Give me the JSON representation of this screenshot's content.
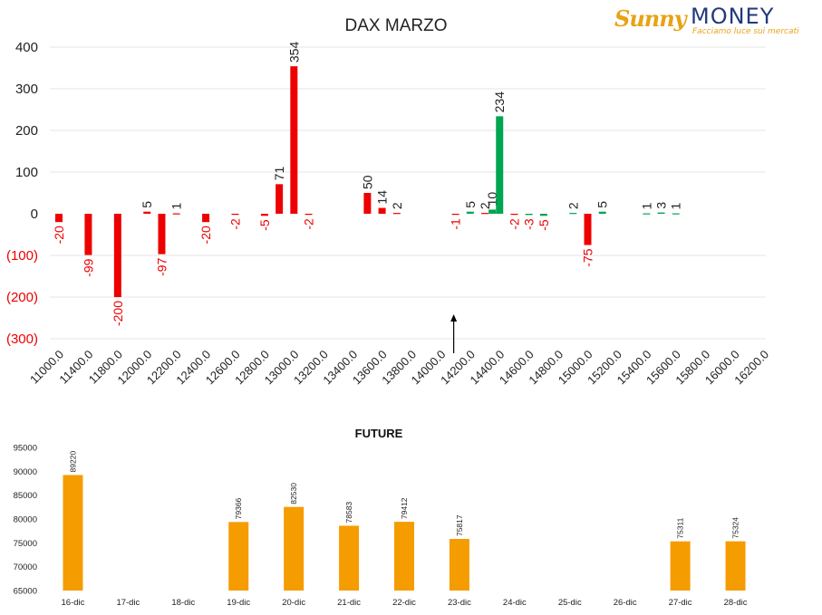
{
  "logo": {
    "brand_a": "Sunny",
    "brand_b": "MONEY",
    "tagline": "Facciamo luce sui mercati"
  },
  "colors": {
    "negative": "#ee0000",
    "positive": "#00a550",
    "future": "#f59c00",
    "axis": "#000000",
    "grid": "#e6e6e6"
  },
  "chart_data": [
    {
      "type": "bar",
      "title": "DAX MARZO",
      "ylim": [
        -300,
        400
      ],
      "yticks": [
        400,
        300,
        200,
        100,
        0,
        -100,
        -200,
        -300
      ],
      "ytick_labels": [
        "400",
        "300",
        "200",
        "100",
        "0",
        "(100)",
        "(200)",
        "(300)"
      ],
      "grid": true,
      "x_tick_labels": [
        "11000.0",
        "11400.0",
        "11800.0",
        "12000.0",
        "12200.0",
        "12400.0",
        "12600.0",
        "12800.0",
        "13000.0",
        "13200.0",
        "13400.0",
        "13600.0",
        "13800.0",
        "14000.0",
        "14200.0",
        "14400.0",
        "14600.0",
        "14800.0",
        "15000.0",
        "15200.0",
        "15400.0",
        "15600.0",
        "15800.0",
        "16000.0",
        "16200.0"
      ],
      "marker_x_index": 13.5,
      "bars": [
        {
          "x": 11000,
          "value": -20,
          "label": "-20",
          "color": "red"
        },
        {
          "x": 11400,
          "value": -99,
          "label": "-99",
          "color": "red"
        },
        {
          "x": 11800,
          "value": -200,
          "label": "-200",
          "color": "red"
        },
        {
          "x": 12000,
          "value": 5,
          "label": "5",
          "color": "red"
        },
        {
          "x": 12100,
          "value": -97,
          "label": "-97",
          "color": "red"
        },
        {
          "x": 12200,
          "value": 1,
          "label": "1",
          "color": "red"
        },
        {
          "x": 12400,
          "value": -20,
          "label": "-20",
          "color": "red"
        },
        {
          "x": 12600,
          "value": -2,
          "label": "-2",
          "color": "red"
        },
        {
          "x": 12800,
          "value": -5,
          "label": "-5",
          "color": "red"
        },
        {
          "x": 12900,
          "value": 71,
          "label": "71",
          "color": "red"
        },
        {
          "x": 13000,
          "value": 354,
          "label": "354",
          "color": "red"
        },
        {
          "x": 13100,
          "value": -2,
          "label": "-2",
          "color": "red"
        },
        {
          "x": 13500,
          "value": 50,
          "label": "50",
          "color": "red"
        },
        {
          "x": 13600,
          "value": 14,
          "label": "14",
          "color": "red"
        },
        {
          "x": 13700,
          "value": 2,
          "label": "2",
          "color": "red"
        },
        {
          "x": 14100,
          "value": -1,
          "label": "-1",
          "color": "red"
        },
        {
          "x": 14200,
          "value": 5,
          "label": "5",
          "color": "green"
        },
        {
          "x": 14300,
          "value": 2,
          "label": "2",
          "color": "red"
        },
        {
          "x": 14350,
          "value": 10,
          "label": "10",
          "color": "green"
        },
        {
          "x": 14400,
          "value": 234,
          "label": "234",
          "color": "green"
        },
        {
          "x": 14500,
          "value": -2,
          "label": "-2",
          "color": "red"
        },
        {
          "x": 14600,
          "value": -3,
          "label": "-3",
          "color": "green"
        },
        {
          "x": 14700,
          "value": -5,
          "label": "-5",
          "color": "green"
        },
        {
          "x": 14900,
          "value": 2,
          "label": "2",
          "color": "green"
        },
        {
          "x": 15000,
          "value": -75,
          "label": "-75",
          "color": "red"
        },
        {
          "x": 15100,
          "value": 5,
          "label": "5",
          "color": "green"
        },
        {
          "x": 15400,
          "value": 1,
          "label": "1",
          "color": "green"
        },
        {
          "x": 15500,
          "value": 3,
          "label": "3",
          "color": "green"
        },
        {
          "x": 15600,
          "value": 1,
          "label": "1",
          "color": "green"
        }
      ]
    },
    {
      "type": "bar",
      "title": "FUTURE",
      "ylim": [
        65000,
        95000
      ],
      "yticks": [
        95000,
        90000,
        85000,
        80000,
        75000,
        70000,
        65000
      ],
      "categories": [
        "16-dic",
        "17-dic",
        "18-dic",
        "19-dic",
        "20-dic",
        "21-dic",
        "22-dic",
        "23-dic",
        "24-dic",
        "25-dic",
        "26-dic",
        "27-dic",
        "28-dic"
      ],
      "values": [
        89220,
        null,
        null,
        79366,
        82530,
        78583,
        79412,
        75817,
        null,
        null,
        null,
        75311,
        75324
      ]
    }
  ]
}
